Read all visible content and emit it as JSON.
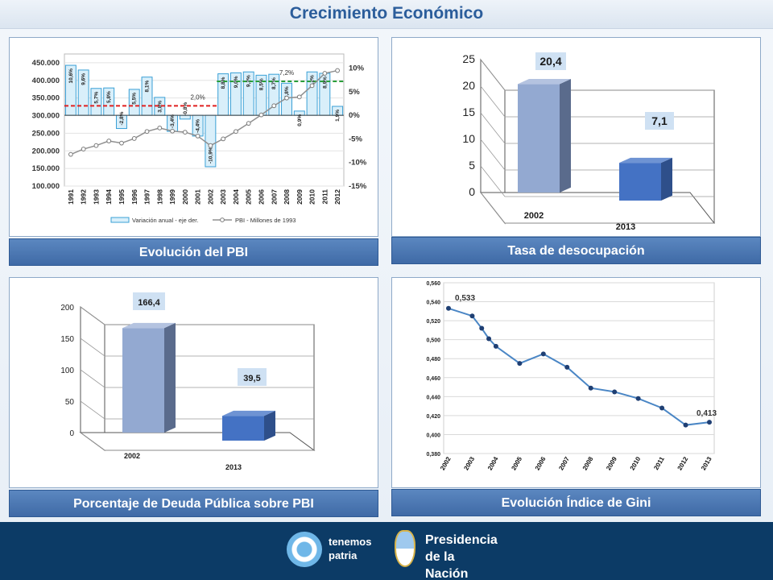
{
  "header": {
    "title": "Crecimiento Económico"
  },
  "chart_data": [
    {
      "type": "bar",
      "caption": "Evolución del PBI",
      "categories": [
        "1991",
        "1992",
        "1993",
        "1994",
        "1995",
        "1996",
        "1997",
        "1998",
        "1999",
        "2000",
        "2001",
        "2002",
        "2003",
        "2004",
        "2005",
        "2006",
        "2007",
        "2008",
        "2009",
        "2010",
        "2011",
        "2012"
      ],
      "series": [
        {
          "name": "Variación anual - eje der.",
          "type": "bar",
          "axis": "right",
          "values": [
            10.6,
            9.6,
            5.7,
            5.8,
            -2.8,
            5.5,
            8.1,
            3.8,
            -3.4,
            -0.8,
            -4.4,
            -10.9,
            8.8,
            9.0,
            9.2,
            8.5,
            8.7,
            6.8,
            0.9,
            9.2,
            8.9,
            1.9
          ],
          "labels": [
            "10,6%",
            "9,6%",
            "5,7%",
            "5,8%",
            "-2,8%",
            "5,5%",
            "8,1%",
            "3,8%",
            "-3,4%",
            "-0,8%",
            "-4,4%",
            "-10,9%",
            "8,8%",
            "9,0%",
            "9,2%",
            "8,5%",
            "8,7%",
            "6,8%",
            "0,9%",
            "9,2%",
            "8,9%",
            "1,9%"
          ]
        },
        {
          "name": "PBI - Millones de 1993",
          "type": "line",
          "axis": "left",
          "values": [
            190000,
            205000,
            215000,
            228000,
            222000,
            235000,
            255000,
            265000,
            256000,
            253000,
            242000,
            215000,
            234000,
            255000,
            278000,
            302000,
            328000,
            350000,
            353000,
            385000,
            420000,
            428000
          ]
        }
      ],
      "averages": [
        {
          "label": "2,0%",
          "value": 2.0,
          "from": "1991",
          "to": "2002",
          "color": "#e02020"
        },
        {
          "label": "7,2%",
          "value": 7.2,
          "from": "2003",
          "to": "2012",
          "color": "#2a9d3a"
        }
      ],
      "yleft": {
        "ticks": [
          "100.000",
          "150.000",
          "200.000",
          "250.000",
          "300.000",
          "350.000",
          "400.000",
          "450.000"
        ],
        "range": [
          100000,
          475000
        ]
      },
      "yright": {
        "ticks": [
          "10%",
          "5%",
          "0%",
          "-5%",
          "-10%",
          "-15%"
        ],
        "range": [
          -15,
          13
        ]
      }
    },
    {
      "type": "bar",
      "caption": "Tasa de desocupación",
      "categories": [
        "2002",
        "2013"
      ],
      "values": [
        20.4,
        7.1
      ],
      "labels": [
        "20,4",
        "7,1"
      ],
      "ticks": [
        "0",
        "5",
        "10",
        "15",
        "20",
        "25"
      ],
      "ylim": [
        0,
        25
      ]
    },
    {
      "type": "bar",
      "caption": "Porcentaje de Deuda Pública sobre PBI",
      "categories": [
        "2002",
        "2013"
      ],
      "values": [
        166.4,
        39.5
      ],
      "labels": [
        "166,4",
        "39,5"
      ],
      "ticks": [
        "0",
        "50",
        "100",
        "150",
        "200"
      ],
      "ylim": [
        0,
        200
      ]
    },
    {
      "type": "line",
      "caption": "Evolución Índice de Gini",
      "categories": [
        "2002",
        "2003",
        "2004",
        "2005",
        "2006",
        "2007",
        "2008",
        "2009",
        "2010",
        "2011",
        "2012",
        "2013"
      ],
      "x": [
        2002.0,
        2003.0,
        2003.4,
        2003.7,
        2004.0,
        2005.0,
        2006.0,
        2007.0,
        2008.0,
        2009.0,
        2010.0,
        2011.0,
        2012.0,
        2013.0
      ],
      "values": [
        0.533,
        0.525,
        0.512,
        0.501,
        0.493,
        0.475,
        0.485,
        0.471,
        0.449,
        0.445,
        0.438,
        0.428,
        0.41,
        0.413
      ],
      "point_labels": [
        {
          "index": 0,
          "text": "0,533"
        },
        {
          "index": 13,
          "text": "0,413"
        }
      ],
      "ticks": [
        "0,380",
        "0,400",
        "0,420",
        "0,440",
        "0,460",
        "0,480",
        "0,500",
        "0,520",
        "0,540",
        "0,560"
      ],
      "ylim": [
        0.38,
        0.56
      ]
    }
  ],
  "footer": {
    "logo1_line1": "tenemos",
    "logo1_line2": "patria",
    "logo2_line1": "Presidencia",
    "logo2_line2": "de la Nación"
  },
  "colors": {
    "bar_light": "#93a9d1",
    "bar_dark": "#4472c4",
    "caption": "#4a78b5",
    "line_gray": "#8f8f8f",
    "gini_line": "#4a86c5",
    "gini_point": "#1f3f73"
  }
}
